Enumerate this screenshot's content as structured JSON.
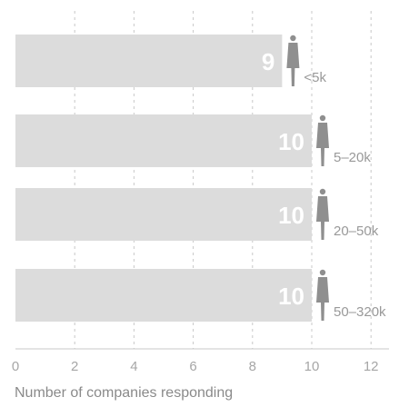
{
  "chart_data": {
    "type": "bar",
    "orientation": "horizontal",
    "categories": [
      "<5k",
      "5–20k",
      "20–50k",
      "50–320k"
    ],
    "values": [
      9,
      10,
      10,
      10
    ],
    "xlabel": "Number of companies responding",
    "xlim": [
      0,
      13
    ],
    "xticks": [
      0,
      2,
      4,
      6,
      8,
      10,
      12
    ],
    "grid": true,
    "colors": {
      "bar": "#dcdcdc",
      "figure": "#8f8f8f",
      "grid": "#c8c8c8",
      "label": "#ffffff"
    },
    "icon": "person-icon"
  }
}
